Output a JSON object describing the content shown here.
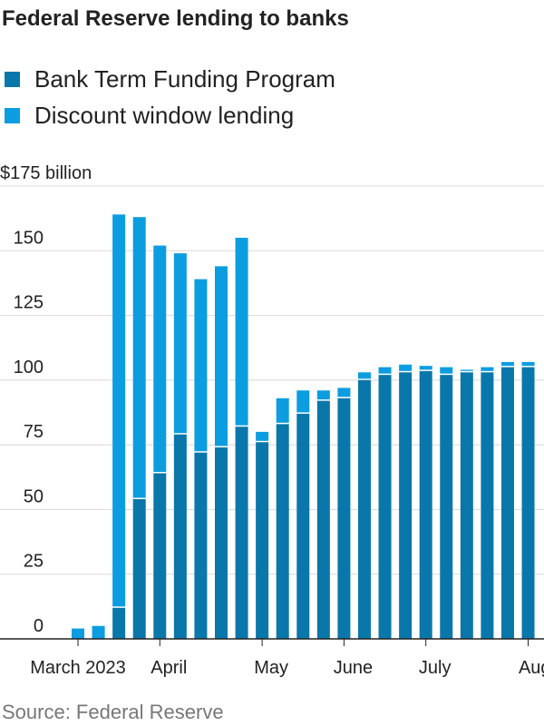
{
  "chart_data": {
    "type": "bar",
    "stacked": true,
    "title": "Federal Reserve lending to banks",
    "source": "Source: Federal Reserve",
    "categories": [
      "March 2023",
      null,
      null,
      null,
      "April",
      null,
      null,
      null,
      null,
      "May",
      null,
      null,
      null,
      "June",
      null,
      null,
      null,
      "July",
      null,
      null,
      null,
      null,
      "Aug."
    ],
    "series": [
      {
        "name": "Bank Term Funding Program",
        "color": "#0a77aa",
        "values": [
          0,
          0,
          12,
          54,
          64,
          79,
          72,
          74,
          82,
          76,
          83,
          87,
          92,
          93,
          100,
          102,
          103,
          103.5,
          102,
          103,
          103,
          105,
          105
        ]
      },
      {
        "name": "Discount window lending",
        "color": "#0b9de0",
        "values": [
          4,
          5,
          152,
          109,
          88,
          70,
          67,
          70,
          73,
          4,
          10,
          9,
          4,
          4,
          3,
          3,
          3,
          2,
          3,
          1,
          2,
          2,
          2
        ]
      }
    ],
    "ylim": [
      0,
      175
    ],
    "yticks": [
      0,
      25,
      50,
      75,
      100,
      125,
      150,
      {
        "value": 175,
        "label": "$175 billion"
      }
    ],
    "grid": true
  }
}
